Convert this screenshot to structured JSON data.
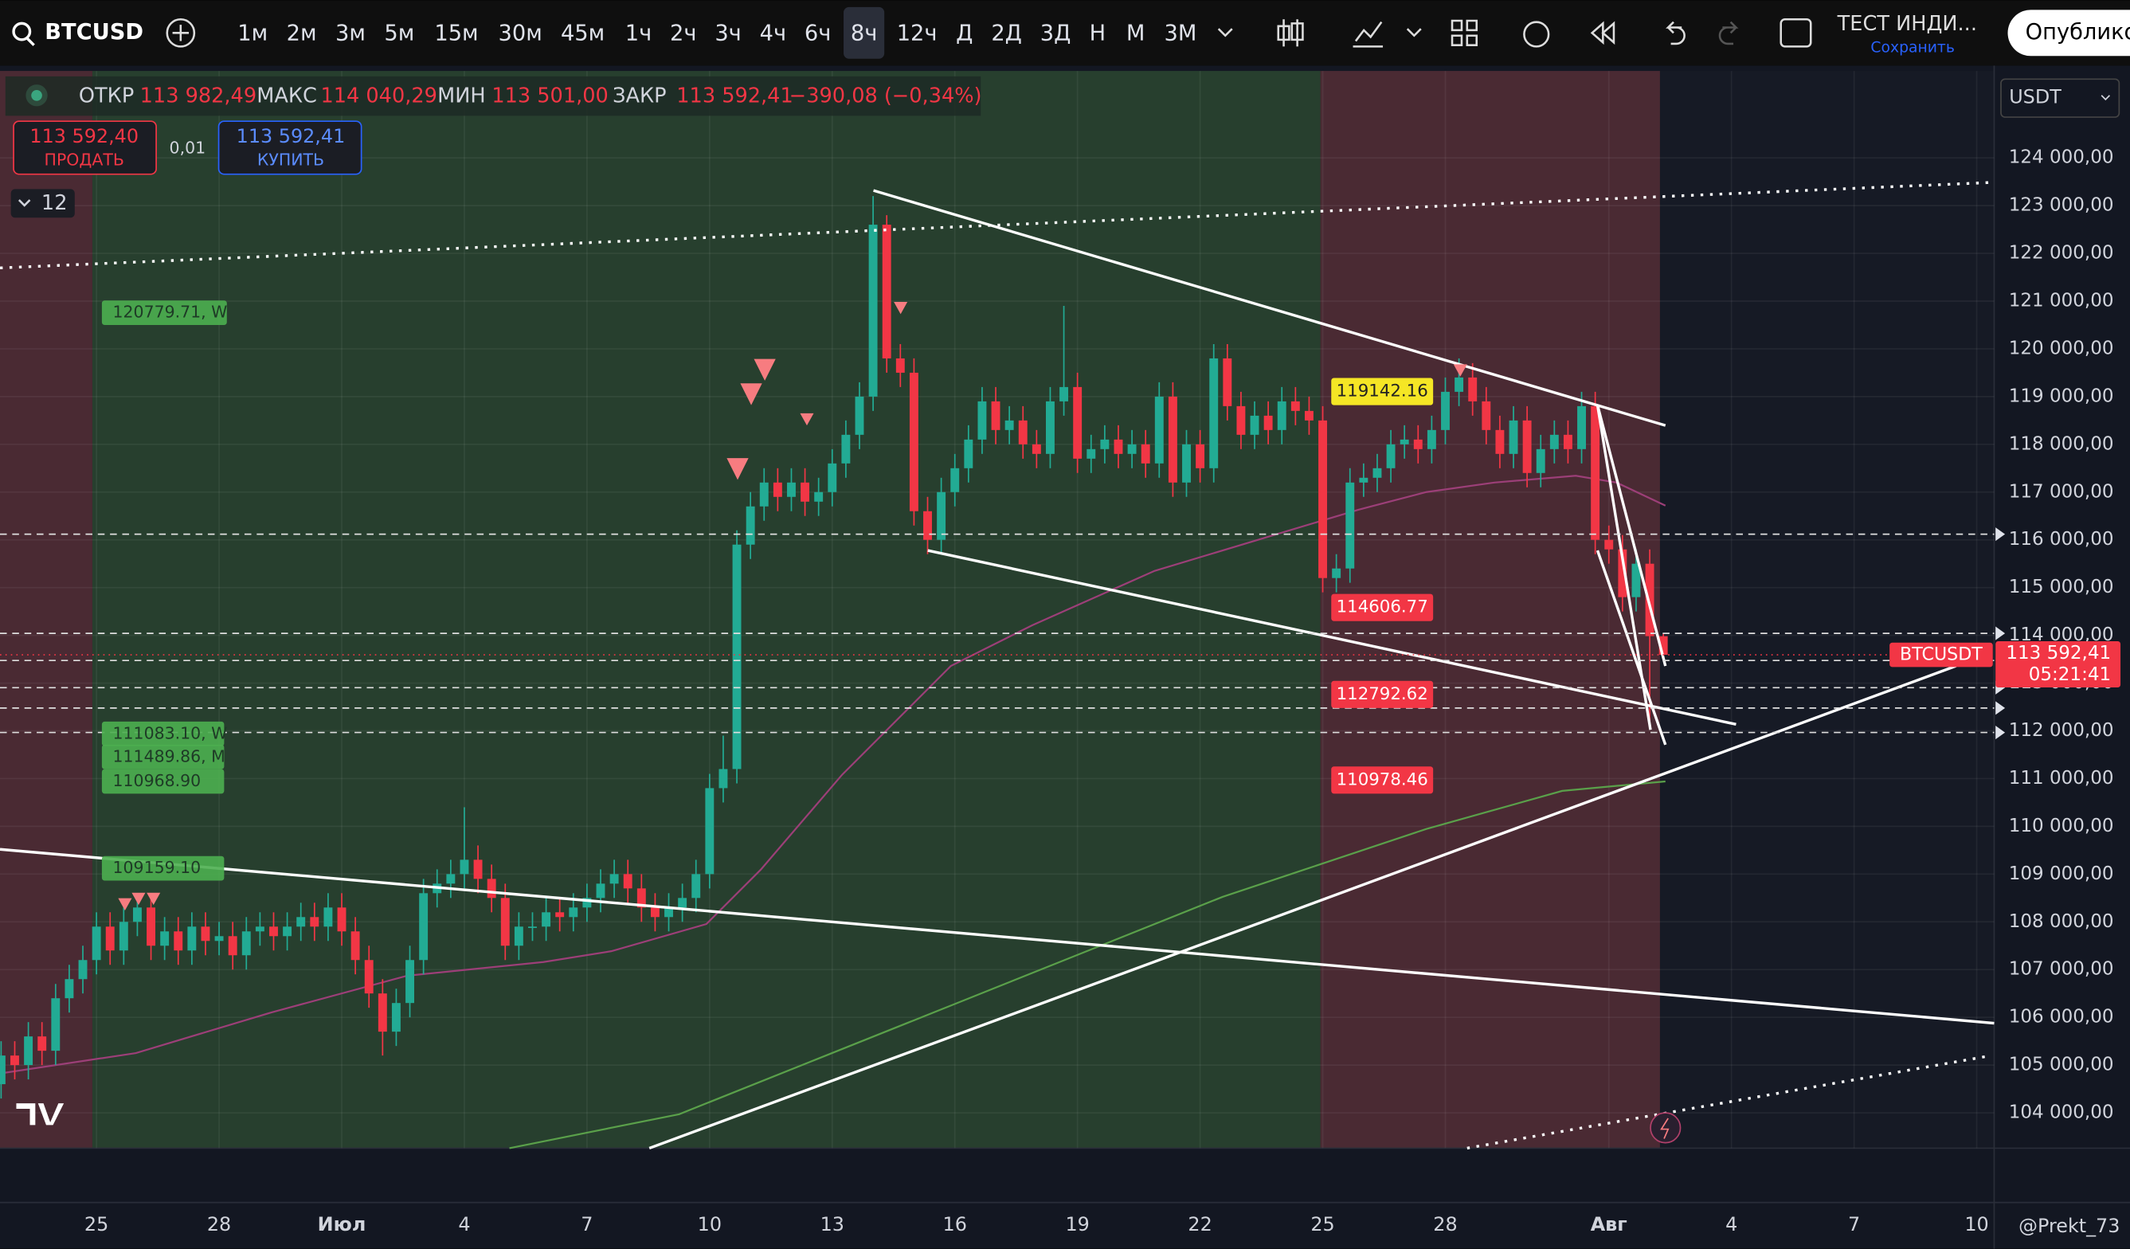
{
  "toolbar": {
    "symbol": "BTCUSD",
    "intervals": [
      "1м",
      "2м",
      "3м",
      "5м",
      "15м",
      "30м",
      "45м",
      "1ч",
      "2ч",
      "3ч",
      "4ч",
      "6ч",
      "8ч",
      "12ч",
      "Д",
      "2Д",
      "3Д",
      "Н",
      "М",
      "3М"
    ],
    "active_interval": "8ч",
    "layout_name": "ТЕСТ ИНДИ...",
    "save": "Сохранить",
    "publish": "Опублико"
  },
  "legend": {
    "open_label": "ОТКР",
    "open": "113 982,49",
    "high_label": "МАКС",
    "high": "114 040,29",
    "low_label": "МИН",
    "low": "113 501,00",
    "close_label": "ЗАКР",
    "close": "113 592,41",
    "change": "−390,08 (−0,34%)"
  },
  "trade": {
    "sell_price": "113 592,40",
    "sell": "ПРОДАТЬ",
    "qty": "0,01",
    "buy_price": "113 592,41",
    "buy": "КУПИТЬ"
  },
  "indicators_count": "12",
  "currency": "USDT",
  "level_labels": [
    "120779.71, W",
    "111083.10, W",
    "111489.86, M",
    "110968.90",
    "109159.10"
  ],
  "price_labels": [
    "119142.16",
    "114606.77",
    "112792.62",
    "110978.46"
  ],
  "last_price": {
    "symbol": "BTCUSDT",
    "price": "113 592,41",
    "countdown": "05:21:41"
  },
  "watermark": "@Prekt_73",
  "chart_data": {
    "type": "candlestick",
    "up_color": "#22ab94",
    "down_color": "#f23645",
    "grid": true,
    "ylim": [
      103260,
      125820
    ],
    "yticks": [
      {
        "value": 104000,
        "label": "104 000,00"
      },
      {
        "value": 105000,
        "label": "105 000,00"
      },
      {
        "value": 106000,
        "label": "106 000,00"
      },
      {
        "value": 107000,
        "label": "107 000,00"
      },
      {
        "value": 108000,
        "label": "108 000,00"
      },
      {
        "value": 109000,
        "label": "109 000,00"
      },
      {
        "value": 110000,
        "label": "110 000,00"
      },
      {
        "value": 111000,
        "label": "111 000,00"
      },
      {
        "value": 112000,
        "label": "112 000,00"
      },
      {
        "value": 113000,
        "label": "113 000,00"
      },
      {
        "value": 114000,
        "label": "114 000,00"
      },
      {
        "value": 115000,
        "label": "115 000,00"
      },
      {
        "value": 116000,
        "label": "116 000,00"
      },
      {
        "value": 117000,
        "label": "117 000,00"
      },
      {
        "value": 118000,
        "label": "118 000,00"
      },
      {
        "value": 119000,
        "label": "119 000,00"
      },
      {
        "value": 120000,
        "label": "120 000,00"
      },
      {
        "value": 121000,
        "label": "121 000,00"
      },
      {
        "value": 122000,
        "label": "122 000,00"
      },
      {
        "value": 123000,
        "label": "123 000,00"
      },
      {
        "value": 124000,
        "label": "124 000,00"
      }
    ],
    "categories": [
      null,
      null,
      null,
      null,
      null,
      null,
      null,
      "25",
      null,
      null,
      null,
      null,
      null,
      null,
      null,
      null,
      "28",
      null,
      null,
      null,
      null,
      null,
      null,
      null,
      null,
      "Июл",
      null,
      null,
      null,
      null,
      null,
      null,
      null,
      null,
      "4",
      null,
      null,
      null,
      null,
      null,
      null,
      null,
      null,
      "7",
      null,
      null,
      null,
      null,
      null,
      null,
      null,
      null,
      "10",
      null,
      null,
      null,
      null,
      null,
      null,
      null,
      null,
      "13",
      null,
      null,
      null,
      null,
      null,
      null,
      null,
      null,
      "16",
      null,
      null,
      null,
      null,
      null,
      null,
      null,
      null,
      "19",
      null,
      null,
      null,
      null,
      null,
      null,
      null,
      null,
      "22",
      null,
      null,
      null,
      null,
      null,
      null,
      null,
      null,
      "25",
      null,
      null,
      null,
      null,
      null,
      null,
      null,
      null,
      "28",
      null,
      null,
      null,
      null,
      null,
      null,
      null,
      null,
      null,
      null,
      null,
      "Авг",
      null,
      null,
      null,
      null,
      null,
      null,
      null,
      null,
      "4",
      null,
      null,
      null,
      null,
      null,
      null,
      null,
      null,
      "7",
      null,
      null,
      null,
      null,
      null,
      null,
      null,
      null,
      "10",
      null
    ],
    "open": [
      104600,
      105200,
      105000,
      105600,
      105300,
      106400,
      106800,
      107200,
      107900,
      107400,
      108000,
      108300,
      107500,
      107800,
      107400,
      107900,
      107600,
      107700,
      107300,
      107800,
      107900,
      107700,
      107900,
      108100,
      107900,
      108300,
      107800,
      107200,
      106500,
      105700,
      106300,
      107200,
      108600,
      108800,
      109000,
      109300,
      108900,
      108500,
      107500,
      107900,
      107900,
      108200,
      108100,
      108300,
      108500,
      108800,
      109000,
      108700,
      108300,
      108100,
      108300,
      108500,
      109000,
      110800,
      111200,
      115900,
      116700,
      117200,
      116900,
      117200,
      116800,
      117000,
      117600,
      118200,
      119000,
      122600,
      119800,
      119500,
      116600,
      116000,
      117000,
      117500,
      118100,
      118900,
      118300,
      118500,
      118000,
      117800,
      118900,
      119200,
      117700,
      117900,
      118100,
      117800,
      118000,
      117600,
      119000,
      117200,
      118000,
      117500,
      119800,
      118800,
      118200,
      118600,
      118300,
      118900,
      118700,
      118500,
      115200,
      115400,
      117200,
      117300,
      117500,
      118000,
      118100,
      117900,
      118300,
      119100,
      119400,
      118900,
      118300,
      117800,
      118500,
      117400,
      117900,
      118200,
      117900,
      118800,
      116000,
      115800,
      114800,
      115500,
      113982.49,
      null,
      null,
      null,
      null,
      null,
      null,
      null,
      null,
      null,
      null,
      null,
      null,
      null,
      null,
      null,
      null,
      null,
      null,
      null,
      null,
      null,
      null,
      null,
      null
    ],
    "high": [
      105500,
      105500,
      105900,
      105900,
      106700,
      107100,
      107500,
      108200,
      108200,
      108300,
      108600,
      108600,
      108100,
      108100,
      108200,
      108200,
      108000,
      108000,
      108100,
      108200,
      108200,
      108200,
      108400,
      108400,
      108600,
      108600,
      108100,
      107500,
      106800,
      106600,
      107500,
      108900,
      109100,
      109300,
      110400,
      109600,
      109200,
      108800,
      108200,
      108200,
      108500,
      108500,
      108600,
      108800,
      109100,
      109300,
      109300,
      109000,
      108600,
      108600,
      108800,
      109300,
      111100,
      111900,
      116200,
      117000,
      117500,
      117500,
      117500,
      117500,
      117300,
      117900,
      118500,
      119300,
      123200,
      122800,
      120100,
      119800,
      116900,
      117300,
      117800,
      118400,
      119200,
      119200,
      118800,
      118800,
      118300,
      119200,
      120900,
      119500,
      118200,
      118400,
      118400,
      118300,
      118300,
      119300,
      119300,
      118300,
      118300,
      120100,
      120100,
      119100,
      118900,
      118900,
      119200,
      119200,
      119000,
      118800,
      115700,
      117500,
      117600,
      117800,
      118300,
      118400,
      118400,
      118600,
      119400,
      119800,
      119700,
      119200,
      118600,
      118800,
      118800,
      118200,
      118500,
      118500,
      119100,
      119100,
      116300,
      116100,
      115800,
      115800,
      114040.29,
      null,
      null,
      null,
      null,
      null,
      null,
      null,
      null,
      null,
      null,
      null,
      null,
      null,
      null,
      null,
      null,
      null,
      null,
      null,
      null,
      null,
      null,
      null,
      null
    ],
    "low": [
      104300,
      104700,
      104700,
      105000,
      105000,
      106100,
      106500,
      106900,
      107100,
      107100,
      107700,
      107200,
      107200,
      107100,
      107100,
      107300,
      107300,
      107000,
      107000,
      107500,
      107400,
      107400,
      107600,
      107600,
      107600,
      107500,
      106900,
      106200,
      105200,
      105400,
      106000,
      106900,
      108300,
      108500,
      108700,
      108600,
      108200,
      107200,
      107200,
      107600,
      107600,
      107800,
      107800,
      108000,
      108200,
      108500,
      108400,
      108000,
      107800,
      107800,
      108000,
      108200,
      108700,
      110500,
      110900,
      115600,
      116400,
      116600,
      116600,
      116500,
      116500,
      116700,
      117300,
      117900,
      118700,
      119500,
      119200,
      116300,
      115700,
      115700,
      116700,
      117200,
      117800,
      118000,
      118000,
      117700,
      117500,
      117500,
      118600,
      117400,
      117400,
      117600,
      117500,
      117500,
      117300,
      117300,
      116900,
      116900,
      117200,
      117200,
      118500,
      117900,
      117900,
      118000,
      118000,
      118400,
      118200,
      114900,
      114900,
      115100,
      116900,
      117000,
      117200,
      117700,
      117600,
      117600,
      118000,
      118800,
      118600,
      118000,
      117500,
      117500,
      117100,
      117100,
      117600,
      117600,
      117600,
      115700,
      115500,
      114500,
      114500,
      112100,
      113501,
      null,
      null,
      null,
      null,
      null,
      null,
      null,
      null,
      null,
      null,
      null,
      null,
      null,
      null,
      null,
      null,
      null,
      null,
      null,
      null,
      null,
      null,
      null,
      null
    ],
    "close": [
      105200,
      105000,
      105600,
      105300,
      106400,
      106800,
      107200,
      107900,
      107400,
      108000,
      108300,
      107500,
      107800,
      107400,
      107900,
      107600,
      107700,
      107300,
      107800,
      107900,
      107700,
      107900,
      108100,
      107900,
      108300,
      107800,
      107200,
      106500,
      105700,
      106300,
      107200,
      108600,
      108800,
      109000,
      109300,
      108900,
      108500,
      107500,
      107900,
      107900,
      108200,
      108100,
      108300,
      108500,
      108800,
      109000,
      108700,
      108300,
      108100,
      108300,
      108500,
      109000,
      110800,
      111200,
      115900,
      116700,
      117200,
      116900,
      117200,
      116800,
      117000,
      117600,
      118200,
      119000,
      122600,
      119800,
      119500,
      116600,
      116000,
      117000,
      117500,
      118100,
      118900,
      118300,
      118500,
      118000,
      117800,
      118900,
      119200,
      117700,
      117900,
      118100,
      117800,
      118000,
      117600,
      119000,
      117200,
      118000,
      117500,
      119800,
      118800,
      118200,
      118600,
      118300,
      118900,
      118700,
      118500,
      115200,
      115400,
      117200,
      117300,
      117500,
      118000,
      118100,
      117900,
      118300,
      119100,
      119400,
      118900,
      118300,
      117800,
      118500,
      117400,
      117900,
      118200,
      117900,
      118800,
      116000,
      115800,
      114800,
      115500,
      113982.49,
      113592.41,
      null,
      null,
      null,
      null,
      null,
      null,
      null,
      null,
      null,
      null,
      null,
      null,
      null,
      null,
      null,
      null,
      null,
      null,
      null,
      null,
      null,
      null,
      null,
      null
    ]
  }
}
